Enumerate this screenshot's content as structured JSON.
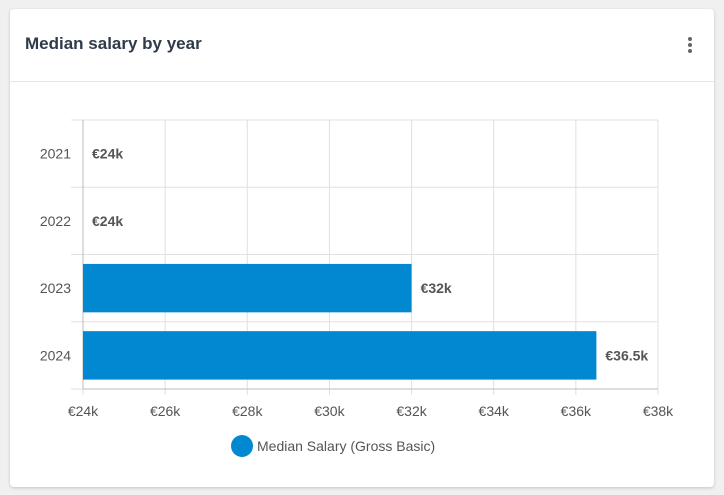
{
  "card": {
    "title": "Median salary by year",
    "menu_icon": "more-vertical-icon"
  },
  "colors": {
    "bar": "#0288d1",
    "grid": "#e0e0e0",
    "axis": "#bdbdbd",
    "text": "#555555"
  },
  "chart_data": {
    "type": "bar",
    "orientation": "horizontal",
    "categories": [
      "2021",
      "2022",
      "2023",
      "2024"
    ],
    "series": [
      {
        "name": "Median Salary (Gross Basic)",
        "values": [
          24000,
          24000,
          32000,
          36500
        ],
        "labels": [
          "€24k",
          "€24k",
          "€32k",
          "€36.5k"
        ]
      }
    ],
    "xlim": [
      24000,
      38000
    ],
    "xticks": [
      24000,
      26000,
      28000,
      30000,
      32000,
      34000,
      36000,
      38000
    ],
    "xtick_labels": [
      "€24k",
      "€26k",
      "€28k",
      "€30k",
      "€32k",
      "€34k",
      "€36k",
      "€38k"
    ],
    "grid": true,
    "legend_position": "bottom"
  }
}
